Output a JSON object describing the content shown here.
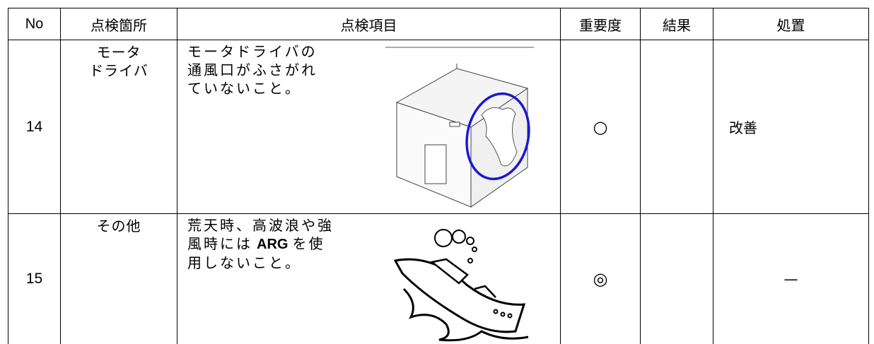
{
  "table": {
    "header": [
      "No",
      "点検箇所",
      "点検項目",
      "重要度",
      "結果",
      "処置"
    ],
    "rows": [
      {
        "no": "14",
        "location": [
          "モータ",
          "ドライバ"
        ],
        "item": [
          "モータドライバの",
          "通風口がふさがれ",
          "ていないこと。"
        ],
        "importance": "○",
        "action": "改善"
      },
      {
        "no": "15",
        "location": [
          "その他"
        ],
        "item": [
          "荒天時、高波浪や強",
          "風時には",
          "ARG",
          "を使",
          "用しないこと。"
        ],
        "importance": "◎",
        "action": "—"
      }
    ]
  }
}
